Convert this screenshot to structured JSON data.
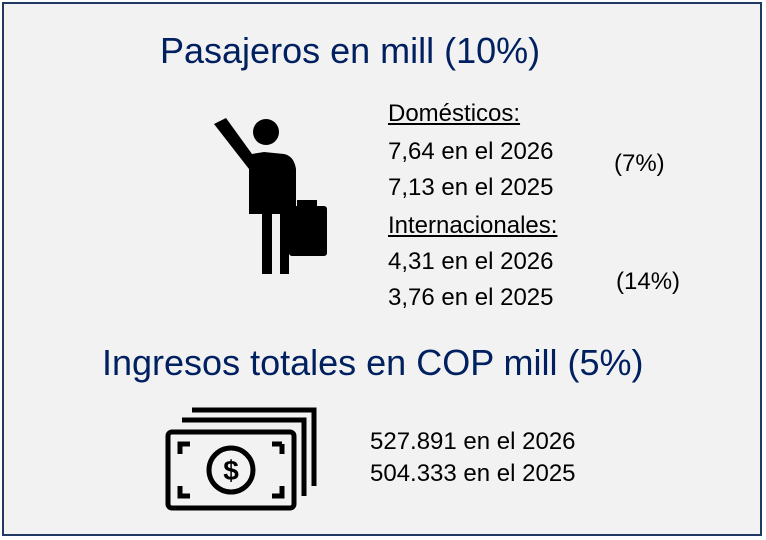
{
  "passengers": {
    "title": "Pasajeros en mill (10%)",
    "domestic": {
      "label": "Domésticos:",
      "lines": [
        "7,64 en el 2026",
        "7,13 en el 2025"
      ],
      "change": "(7%)"
    },
    "international": {
      "label": "Internacionales:",
      "lines": [
        "4,31 en el 2026",
        "3,76 en el 2025"
      ],
      "change": "(14%)"
    }
  },
  "revenue": {
    "title": "Ingresos totales en COP mill (5%)",
    "lines": [
      "527.891 en el 2026",
      "504.333 en el 2025"
    ]
  }
}
